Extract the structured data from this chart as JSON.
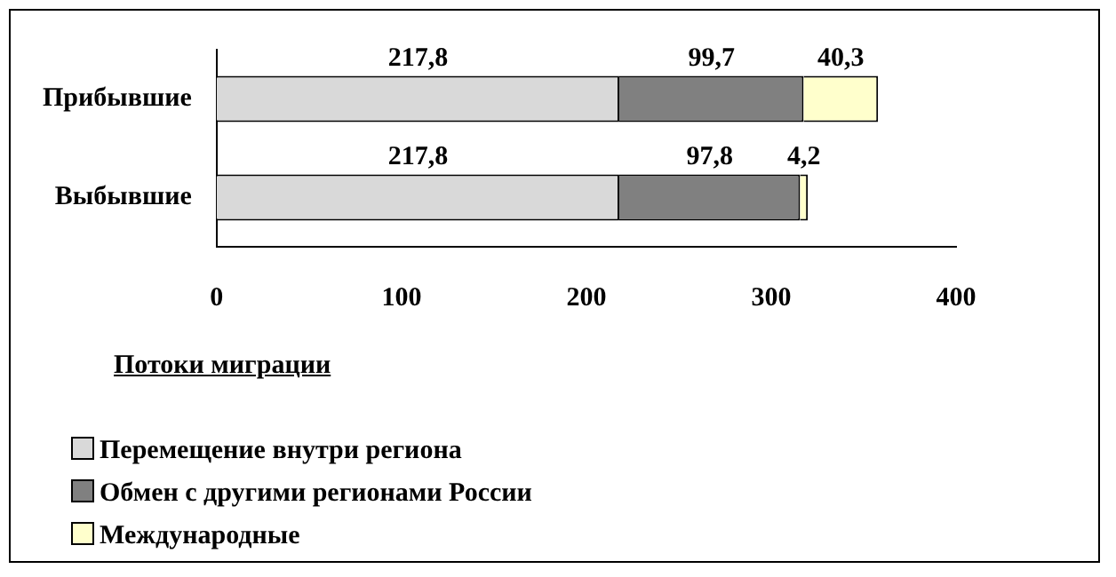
{
  "chart_data": {
    "type": "bar",
    "orientation": "horizontal",
    "stacked": true,
    "categories": [
      "Прибывшие",
      "Выбывшие"
    ],
    "series": [
      {
        "name": "Перемещение внутри региона",
        "color": "#d9d9d9",
        "values": [
          217.8,
          217.8
        ],
        "value_labels": [
          "217,8",
          "217,8"
        ]
      },
      {
        "name": "Обмен с другими регионами России",
        "color": "#808080",
        "values": [
          99.7,
          97.8
        ],
        "value_labels": [
          "99,7",
          "97,8"
        ]
      },
      {
        "name": "Международные",
        "color": "#ffffcc",
        "values": [
          40.3,
          4.2
        ],
        "value_labels": [
          "40,3",
          "4,2"
        ]
      }
    ],
    "xlim": [
      0,
      400
    ],
    "xticks": [
      0,
      100,
      200,
      300,
      400
    ],
    "xlabel": "Потоки миграции",
    "grid": false,
    "legend": "bottom left"
  }
}
